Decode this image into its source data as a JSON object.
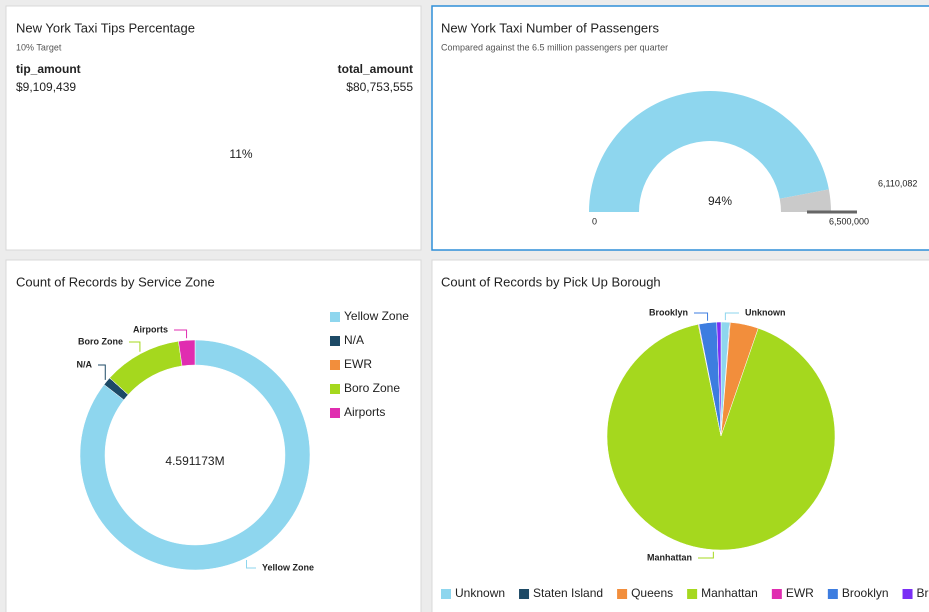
{
  "chart_data": [
    {
      "type": "kpi",
      "title": "New York Taxi Tips Percentage",
      "subtitle": "10% Target",
      "categories": [
        "tip_amount",
        "total_amount"
      ],
      "values": [
        9109439,
        80753555
      ],
      "value_labels": [
        "$9,109,439",
        "$80,753,555"
      ],
      "kpi_value": 11,
      "kpi_label": "11%"
    },
    {
      "type": "gauge",
      "title": "New York Taxi Number of Passengers",
      "subtitle": "Compared against the 6.5 million passengers per quarter",
      "min": 0,
      "value": 6110082,
      "value_label": "6,110,082",
      "target": 6500000,
      "target_label": "6,500,000",
      "percent": 94,
      "percent_label": "94%",
      "color": "#8ed6ee",
      "remainder_color": "#cacaca"
    },
    {
      "type": "donut",
      "title": "Count of Records by Service Zone",
      "categories": [
        "Yellow Zone",
        "N/A",
        "EWR",
        "Boro Zone",
        "Airports"
      ],
      "values": [
        3925000,
        55000,
        500,
        505000,
        105673
      ],
      "colors": [
        "#8ed6ee",
        "#1d4a66",
        "#f28e3c",
        "#a5d81e",
        "#e02db0"
      ],
      "total": 4591173,
      "total_label": "4.591173M"
    },
    {
      "type": "pie",
      "title": "Count of Records by Pick Up Borough",
      "categories": [
        "Unknown",
        "Staten Island",
        "Queens",
        "Manhattan",
        "EWR",
        "Brooklyn",
        "Bronx"
      ],
      "values": [
        1.2,
        0.1,
        4,
        91.5,
        0.1,
        2.5,
        0.6
      ],
      "colors": [
        "#8ed6ee",
        "#1d4a66",
        "#f28e3c",
        "#a5d81e",
        "#e02db0",
        "#3d7de0",
        "#7a2ff5"
      ]
    }
  ]
}
